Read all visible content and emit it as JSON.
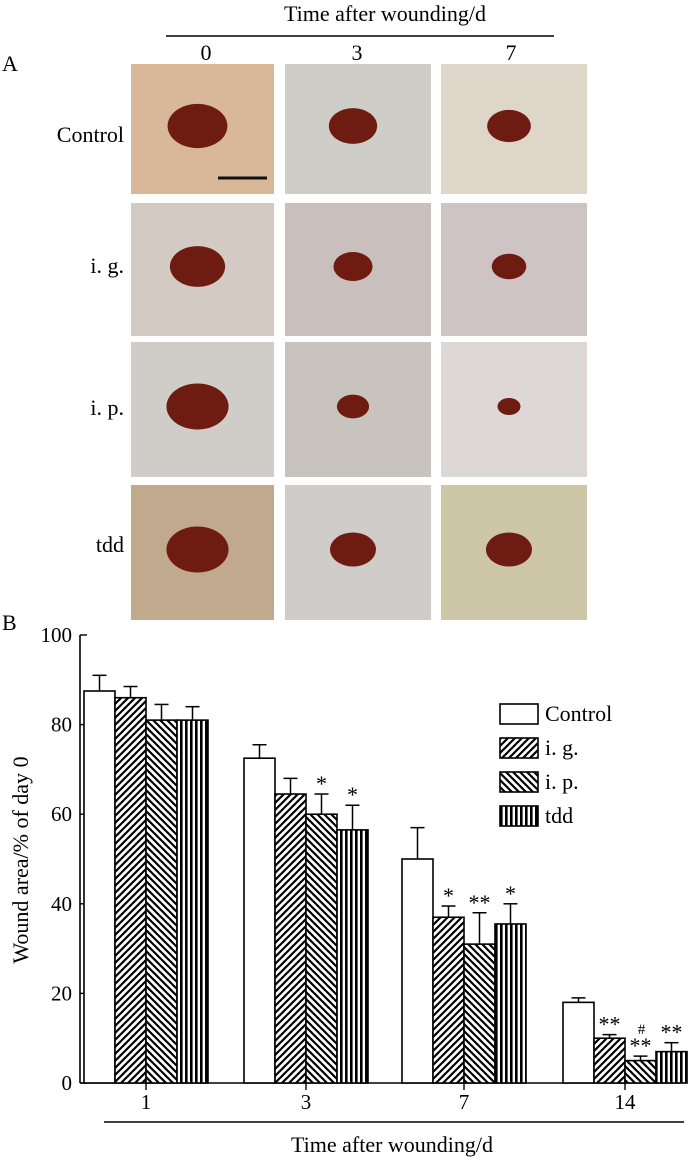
{
  "panel_a": {
    "label": "A",
    "header": "Time after wounding/d",
    "timepoints": [
      "0",
      "3",
      "7"
    ],
    "rows": [
      {
        "label": "Control",
        "skin": [
          "#d8b899",
          "#cfcdc8",
          "#ddd6c9"
        ],
        "wound_color": "#6e1b12"
      },
      {
        "label": "i. g.",
        "skin": [
          "#d3cac4",
          "#c9c0be",
          "#cdc4c3"
        ],
        "wound_color": "#6e1b12"
      },
      {
        "label": "i. p.",
        "skin": [
          "#d0ccc8",
          "#c8c3bd",
          "#ddd8d6"
        ],
        "wound_color": "#6e1b12"
      },
      {
        "label": "tdd",
        "skin": [
          "#c0a98c",
          "#cfccca",
          "#cdc6a7"
        ],
        "wound_color": "#6e1b12"
      }
    ]
  },
  "chart_data": {
    "type": "bar",
    "panel_label": "B",
    "categories": [
      "1",
      "3",
      "7",
      "14"
    ],
    "xlabel": "Time after wounding/d",
    "ylabel": "Wound area/% of day 0",
    "ylim": [
      0,
      100
    ],
    "yticks": [
      0,
      20,
      40,
      60,
      80,
      100
    ],
    "legend_position": "top-right",
    "series": [
      {
        "name": "Control",
        "pattern": "none",
        "values": [
          87.5,
          72.5,
          50,
          18
        ],
        "errors": [
          3.5,
          3,
          7,
          1
        ],
        "annotations": [
          "",
          "",
          "",
          ""
        ]
      },
      {
        "name": "i. g.",
        "pattern": "diagonal-right",
        "values": [
          86,
          64.5,
          37,
          10
        ],
        "errors": [
          2.5,
          3.5,
          2.5,
          0.8
        ],
        "annotations": [
          "",
          "",
          "*",
          "**"
        ]
      },
      {
        "name": "i. p.",
        "pattern": "diagonal-left",
        "values": [
          81,
          60,
          31,
          5
        ],
        "errors": [
          3.5,
          4.5,
          7,
          1
        ],
        "annotations": [
          "",
          "*",
          "**",
          "**"
        ]
      },
      {
        "name": "tdd",
        "pattern": "vertical",
        "values": [
          81,
          56.5,
          35.5,
          7
        ],
        "errors": [
          3,
          5.5,
          4.5,
          2
        ],
        "annotations": [
          "",
          "*",
          "*",
          "**"
        ]
      }
    ],
    "extra_annotation": {
      "text": "#",
      "category": "14",
      "series": "i. p."
    }
  }
}
